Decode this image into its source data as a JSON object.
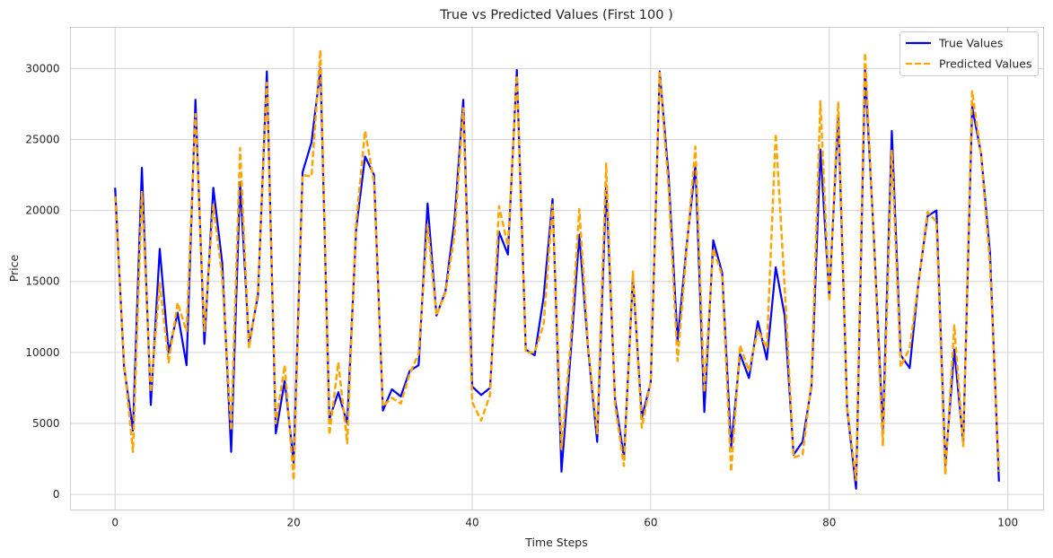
{
  "chart_data": {
    "type": "line",
    "title": "True vs Predicted Values (First 100 )",
    "xlabel": "Time Steps",
    "ylabel": "Price",
    "xlim": [
      -5,
      104
    ],
    "ylim": [
      -1100,
      32900
    ],
    "xticks": [
      0,
      20,
      40,
      60,
      80,
      100
    ],
    "yticks": [
      0,
      5000,
      10000,
      15000,
      20000,
      25000,
      30000
    ],
    "grid": true,
    "legend_position": "top-right",
    "x": [
      0,
      1,
      2,
      3,
      4,
      5,
      6,
      7,
      8,
      9,
      10,
      11,
      12,
      13,
      14,
      15,
      16,
      17,
      18,
      19,
      20,
      21,
      22,
      23,
      24,
      25,
      26,
      27,
      28,
      29,
      30,
      31,
      32,
      33,
      34,
      35,
      36,
      37,
      38,
      39,
      40,
      41,
      42,
      43,
      44,
      45,
      46,
      47,
      48,
      49,
      50,
      51,
      52,
      53,
      54,
      55,
      56,
      57,
      58,
      59,
      60,
      61,
      62,
      63,
      64,
      65,
      66,
      67,
      68,
      69,
      70,
      71,
      72,
      73,
      74,
      75,
      76,
      77,
      78,
      79,
      80,
      81,
      82,
      83,
      84,
      85,
      86,
      87,
      88,
      89,
      90,
      91,
      92,
      93,
      94,
      95,
      96,
      97,
      98,
      99
    ],
    "series": [
      {
        "name": "True Values",
        "color": "#0000ff",
        "style": "solid",
        "values": [
          21600,
          9000,
          4500,
          23000,
          6300,
          17300,
          10000,
          12800,
          9100,
          27800,
          10600,
          21600,
          16300,
          3000,
          22000,
          10600,
          14000,
          29800,
          4300,
          8000,
          2200,
          22700,
          24800,
          30000,
          5300,
          7200,
          5000,
          18700,
          23800,
          22500,
          5900,
          7400,
          6900,
          8700,
          9100,
          20500,
          12600,
          14300,
          19200,
          27800,
          7600,
          7000,
          7500,
          18500,
          16900,
          29900,
          10200,
          9800,
          13900,
          20800,
          1600,
          9700,
          18300,
          10100,
          3700,
          21800,
          6700,
          2600,
          15300,
          5400,
          7900,
          29800,
          22400,
          10800,
          17400,
          23200,
          5800,
          17900,
          15600,
          3300,
          9900,
          8200,
          12200,
          9500,
          16000,
          12600,
          2800,
          3700,
          7600,
          24300,
          13900,
          26700,
          6000,
          400,
          29900,
          18000,
          4500,
          25600,
          9800,
          8900,
          15000,
          19600,
          20000,
          2000,
          10200,
          3600,
          27300,
          24000,
          17000,
          900
        ]
      },
      {
        "name": "Predicted Values",
        "color": "#ffa500",
        "style": "dashed",
        "values": [
          21000,
          9300,
          3000,
          21300,
          7200,
          14900,
          9300,
          13500,
          11500,
          26800,
          11500,
          20400,
          15300,
          4500,
          24400,
          10300,
          14300,
          29000,
          5000,
          9100,
          1000,
          22500,
          22400,
          31300,
          4200,
          9300,
          3600,
          19200,
          25600,
          22000,
          6200,
          6800,
          6400,
          8500,
          9900,
          19000,
          12600,
          14200,
          18200,
          27200,
          6500,
          5200,
          7000,
          20300,
          17500,
          29500,
          10000,
          10000,
          12000,
          20400,
          3200,
          10500,
          20100,
          10300,
          4300,
          23300,
          6300,
          2000,
          15700,
          4700,
          8000,
          29700,
          21600,
          9400,
          17100,
          24500,
          7200,
          17300,
          15400,
          1600,
          10500,
          8700,
          11600,
          10300,
          25400,
          14600,
          2600,
          2800,
          7900,
          27700,
          13600,
          27600,
          6100,
          1000,
          31100,
          17800,
          3400,
          24200,
          9000,
          10300,
          14900,
          19900,
          19200,
          1400,
          11900,
          3400,
          28400,
          23900,
          16200,
          1600
        ]
      }
    ]
  }
}
